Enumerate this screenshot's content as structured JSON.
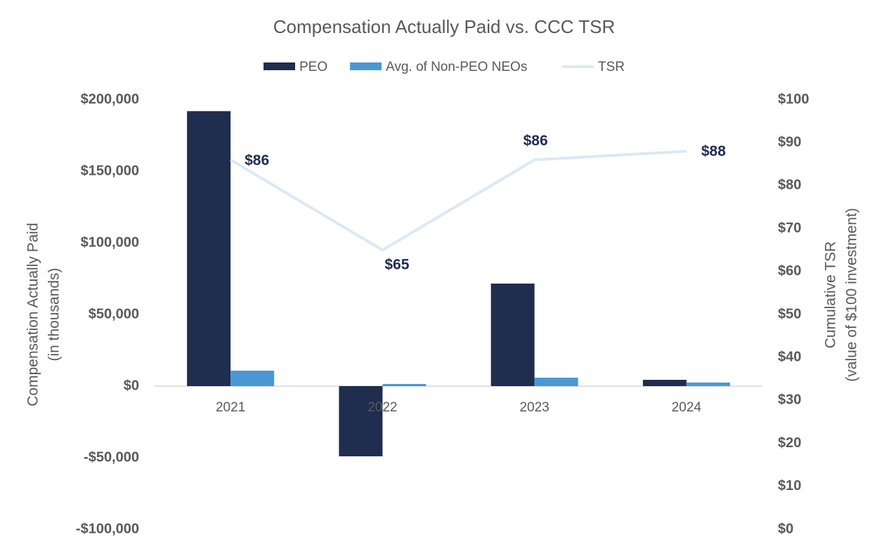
{
  "chart_data": {
    "type": "bar",
    "title": "Compensation Actually Paid vs. CCC TSR",
    "categories": [
      "2021",
      "2022",
      "2023",
      "2024"
    ],
    "y_label": [
      "Compensation Actually Paid",
      "(in thousands)"
    ],
    "y2_label": [
      "Cumulative TSR",
      "(value of $100 investment)"
    ],
    "series": [
      {
        "name": "PEO",
        "type": "bar",
        "color": "#1f2d4e",
        "values": [
          192000,
          -49000,
          71600,
          4400
        ]
      },
      {
        "name": "Avg. of Non-PEO NEOs",
        "type": "bar",
        "color": "#4a98d3",
        "values": [
          10800,
          1500,
          5900,
          2500
        ]
      },
      {
        "name": "TSR",
        "type": "line",
        "axis": "y2",
        "color": "#dde8f6",
        "values": [
          86,
          65,
          86,
          88
        ],
        "value_labels": [
          "$86",
          "$65",
          "$86",
          "$88"
        ]
      }
    ],
    "ylim": [
      -100000,
      200000
    ],
    "yticks": [
      {
        "value": 200000,
        "label": "$200,000"
      },
      {
        "value": 150000,
        "label": "$150,000"
      },
      {
        "value": 100000,
        "label": "$100,000"
      },
      {
        "value": 50000,
        "label": "$50,000"
      },
      {
        "value": 0,
        "label": "$0"
      },
      {
        "value": -50000,
        "label": "-$50,000"
      },
      {
        "value": -100000,
        "label": "-$100,000"
      }
    ],
    "y2lim": [
      0,
      100
    ],
    "y2ticks": [
      {
        "value": 100,
        "label": "$100"
      },
      {
        "value": 90,
        "label": "$90"
      },
      {
        "value": 80,
        "label": "$80"
      },
      {
        "value": 70,
        "label": "$70"
      },
      {
        "value": 60,
        "label": "$60"
      },
      {
        "value": 50,
        "label": "$50"
      },
      {
        "value": 40,
        "label": "$40"
      },
      {
        "value": 30,
        "label": "$30"
      },
      {
        "value": 20,
        "label": "$20"
      },
      {
        "value": 10,
        "label": "$10"
      },
      {
        "value": 0,
        "label": "$0"
      }
    ],
    "legend": "top",
    "grid": false
  }
}
